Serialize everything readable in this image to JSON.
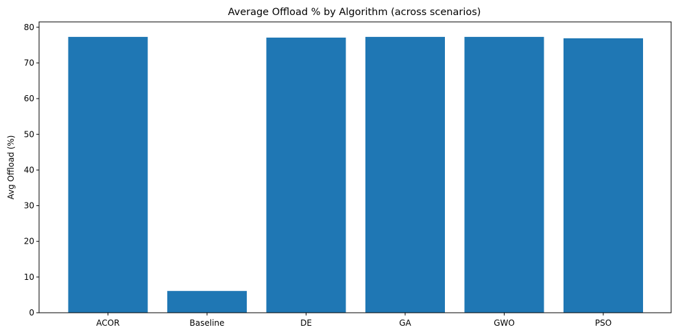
{
  "chart_data": {
    "type": "bar",
    "title": "Average Offload % by Algorithm (across scenarios)",
    "xlabel": "",
    "ylabel": "Avg Offload (%)",
    "categories": [
      "ACOR",
      "Baseline",
      "DE",
      "GA",
      "GWO",
      "PSO"
    ],
    "values": [
      77.3,
      6.1,
      77.1,
      77.3,
      77.3,
      76.9
    ],
    "ylim": [
      0,
      81.5
    ],
    "yticks": [
      0,
      10,
      20,
      30,
      40,
      50,
      60,
      70,
      80
    ],
    "ytick_labels": [
      "0",
      "10",
      "20",
      "30",
      "40",
      "50",
      "60",
      "70",
      "80"
    ],
    "bar_color": "#1f77b4",
    "grid": false,
    "legend": "none"
  }
}
